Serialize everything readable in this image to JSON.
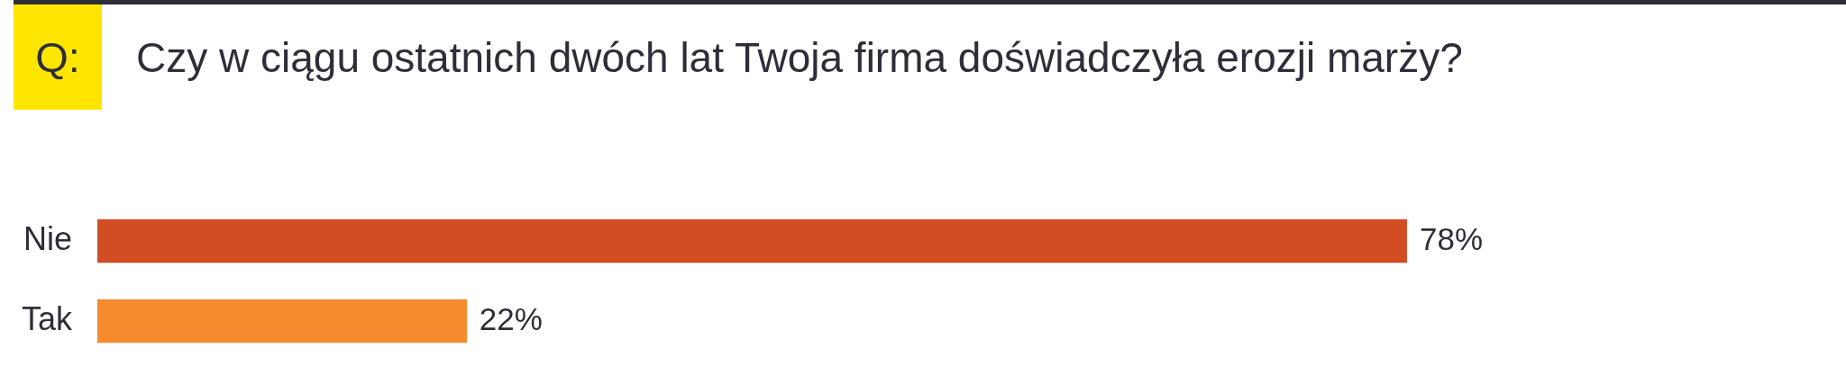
{
  "chart_data": {
    "type": "bar",
    "orientation": "horizontal",
    "title": "Czy w ciągu ostatnich dwóch lat Twoja firma doświadczyła erozji marży?",
    "annotations": [
      "Q:"
    ],
    "categories": [
      "Nie",
      "Tak"
    ],
    "values": [
      78,
      22
    ],
    "colors": [
      "#d24c24",
      "#f58b2f"
    ],
    "value_labels": [
      "78%",
      "22%"
    ],
    "grid": false,
    "legend": false,
    "tick_labels": "y"
  }
}
